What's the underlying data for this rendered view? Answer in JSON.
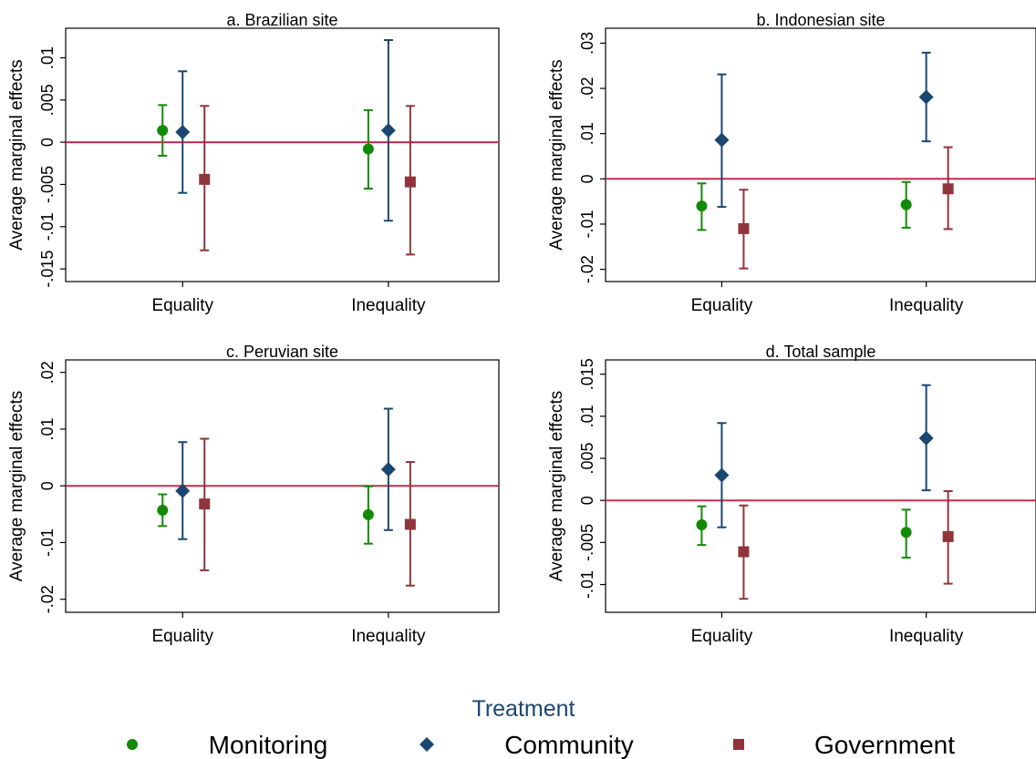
{
  "figure": {
    "x_categories": [
      "Equality",
      "Inequality"
    ],
    "ylabel": "Average marginal effects",
    "zero_line_color": "#c8284b",
    "legend": {
      "title": "Treatment",
      "title_color": "#1a476f",
      "items": [
        {
          "label": "Monitoring",
          "marker": "circle",
          "color": "#138a07"
        },
        {
          "label": "Community",
          "marker": "diamond",
          "color": "#1a476f"
        },
        {
          "label": "Government",
          "marker": "square",
          "color": "#90353b"
        }
      ]
    }
  },
  "chart_data": [
    {
      "type": "scatter",
      "title": "a. Brazilian site",
      "categories": [
        "Equality",
        "Inequality"
      ],
      "ylabel": "Average marginal effects",
      "ylim": [
        -0.0165,
        0.0135
      ],
      "yticks": [
        -0.015,
        -0.01,
        -0.005,
        0,
        0.005,
        0.01
      ],
      "ytick_labels": [
        "-.015",
        "-.01",
        "-.005",
        "0",
        ".005",
        ".01"
      ],
      "series": [
        {
          "name": "Monitoring",
          "values": [
            0.0014,
            -0.0008
          ],
          "ci_low": [
            -0.0016,
            -0.0055
          ],
          "ci_high": [
            0.0044,
            0.0038
          ]
        },
        {
          "name": "Community",
          "values": [
            0.0012,
            0.0014
          ],
          "ci_low": [
            -0.006,
            -0.0093
          ],
          "ci_high": [
            0.0084,
            0.0121
          ]
        },
        {
          "name": "Government",
          "values": [
            -0.0044,
            -0.0047
          ],
          "ci_low": [
            -0.0128,
            -0.0133
          ],
          "ci_high": [
            0.0043,
            0.0043
          ]
        }
      ]
    },
    {
      "type": "scatter",
      "title": "b. Indonesian site",
      "categories": [
        "Equality",
        "Inequality"
      ],
      "ylabel": "Average marginal effects",
      "ylim": [
        -0.0227,
        0.0333
      ],
      "yticks": [
        -0.02,
        -0.01,
        0,
        0.01,
        0.02,
        0.03
      ],
      "ytick_labels": [
        "-.02",
        "-.01",
        "0",
        ".01",
        ".02",
        ".03"
      ],
      "series": [
        {
          "name": "Monitoring",
          "values": [
            -0.006,
            -0.0057
          ],
          "ci_low": [
            -0.0113,
            -0.0108
          ],
          "ci_high": [
            -0.001,
            -0.0007
          ]
        },
        {
          "name": "Community",
          "values": [
            0.0086,
            0.0181
          ],
          "ci_low": [
            -0.0062,
            0.0083
          ],
          "ci_high": [
            0.0231,
            0.0279
          ]
        },
        {
          "name": "Government",
          "values": [
            -0.011,
            -0.0022
          ],
          "ci_low": [
            -0.0198,
            -0.0111
          ],
          "ci_high": [
            -0.0024,
            0.007
          ]
        }
      ]
    },
    {
      "type": "scatter",
      "title": "c. Peruvian site",
      "categories": [
        "Equality",
        "Inequality"
      ],
      "ylabel": "Average marginal effects",
      "ylim": [
        -0.0223,
        0.0222
      ],
      "yticks": [
        -0.02,
        -0.01,
        0,
        0.01,
        0.02
      ],
      "ytick_labels": [
        "-.02",
        "-.01",
        "0",
        ".01",
        ".02"
      ],
      "series": [
        {
          "name": "Monitoring",
          "values": [
            -0.0043,
            -0.0051
          ],
          "ci_low": [
            -0.0071,
            -0.0102
          ],
          "ci_high": [
            -0.0015,
            -0.0001
          ]
        },
        {
          "name": "Community",
          "values": [
            -0.0009,
            0.0029
          ],
          "ci_low": [
            -0.0094,
            -0.0078
          ],
          "ci_high": [
            0.0077,
            0.0136
          ]
        },
        {
          "name": "Government",
          "values": [
            -0.0032,
            -0.0068
          ],
          "ci_low": [
            -0.0149,
            -0.0176
          ],
          "ci_high": [
            0.0083,
            0.0042
          ]
        }
      ]
    },
    {
      "type": "scatter",
      "title": "d. Total sample",
      "categories": [
        "Equality",
        "Inequality"
      ],
      "ylabel": "Average marginal effects",
      "ylim": [
        -0.0133,
        0.0167
      ],
      "yticks": [
        -0.01,
        -0.005,
        0,
        0.005,
        0.01,
        0.015
      ],
      "ytick_labels": [
        "-.01",
        "-.005",
        "0",
        ".005",
        ".01",
        ".015"
      ],
      "series": [
        {
          "name": "Monitoring",
          "values": [
            -0.0029,
            -0.0038
          ],
          "ci_low": [
            -0.0053,
            -0.0068
          ],
          "ci_high": [
            -0.0007,
            -0.0011
          ]
        },
        {
          "name": "Community",
          "values": [
            0.003,
            0.0074
          ],
          "ci_low": [
            -0.0032,
            0.0012
          ],
          "ci_high": [
            0.0092,
            0.0137
          ]
        },
        {
          "name": "Government",
          "values": [
            -0.0061,
            -0.0043
          ],
          "ci_low": [
            -0.0117,
            -0.0099
          ],
          "ci_high": [
            -0.0006,
            0.0011
          ]
        }
      ]
    }
  ]
}
